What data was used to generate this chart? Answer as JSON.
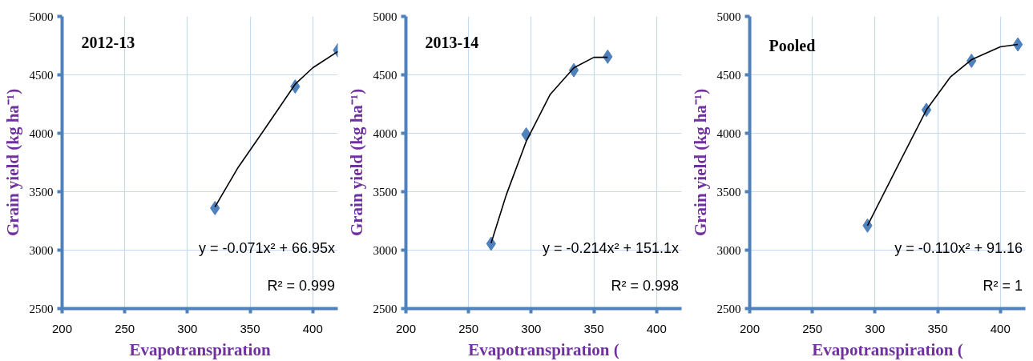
{
  "chart_data": [
    {
      "type": "scatter",
      "xlabel": "Evapotranspiration",
      "ylabel": "Grain yield (kg ha⁻¹)",
      "xlim": [
        200,
        420
      ],
      "ylim": [
        2500,
        5000
      ],
      "xticks": [
        200,
        250,
        300,
        350,
        400
      ],
      "yticks": [
        2500,
        3000,
        3500,
        4000,
        4500,
        5000
      ],
      "grid": true,
      "annotations": [
        "2012-13",
        "y = -0.071x² + 66.95x",
        "R² = 0.999"
      ],
      "series": [
        {
          "marker": "diamond",
          "color": "#4f81bd",
          "x": [
            322,
            386,
            420
          ],
          "values": [
            3360,
            4400,
            4710
          ]
        },
        {
          "type": "line",
          "marker": "none",
          "color": "#000000",
          "x": [
            322,
            340,
            360,
            386,
            400,
            420
          ],
          "values": [
            3370,
            3700,
            4010,
            4420,
            4560,
            4700
          ]
        }
      ]
    },
    {
      "type": "scatter",
      "xlabel": "Evapotranspiration (",
      "ylabel": "Grain yield (kg ha⁻¹)",
      "xlim": [
        200,
        420
      ],
      "ylim": [
        2500,
        5000
      ],
      "xticks": [
        200,
        250,
        300,
        350,
        400
      ],
      "yticks": [
        2500,
        3000,
        3500,
        4000,
        4500,
        5000
      ],
      "grid": true,
      "annotations": [
        "2013-14",
        "y = -0.214x² + 151.1x",
        "R² = 0.998"
      ],
      "series": [
        {
          "marker": "diamond",
          "color": "#4f81bd",
          "x": [
            268,
            296,
            334,
            361
          ],
          "values": [
            3055,
            3990,
            4540,
            4655
          ]
        },
        {
          "type": "line",
          "marker": "none",
          "color": "#000000",
          "x": [
            268,
            280,
            296,
            315,
            334,
            350,
            361
          ],
          "values": [
            3060,
            3470,
            3930,
            4330,
            4560,
            4650,
            4650
          ]
        }
      ]
    },
    {
      "type": "scatter",
      "xlabel": "Evapotranspiration (",
      "ylabel": "Grain yield (kg ha⁻¹)",
      "xlim": [
        200,
        420
      ],
      "ylim": [
        2500,
        5000
      ],
      "xticks": [
        200,
        250,
        300,
        350,
        400
      ],
      "yticks": [
        2500,
        3000,
        3500,
        4000,
        4500,
        5000
      ],
      "grid": true,
      "annotations": [
        "Pooled",
        "y = -0.110x² + 91.16",
        "R² = 1"
      ],
      "series": [
        {
          "marker": "diamond",
          "color": "#4f81bd",
          "x": [
            294,
            341,
            377,
            414
          ],
          "values": [
            3210,
            4200,
            4620,
            4760
          ]
        },
        {
          "type": "line",
          "marker": "none",
          "color": "#000000",
          "x": [
            294,
            320,
            341,
            360,
            377,
            400,
            414
          ],
          "values": [
            3210,
            3760,
            4200,
            4480,
            4630,
            4740,
            4760
          ]
        }
      ]
    }
  ]
}
